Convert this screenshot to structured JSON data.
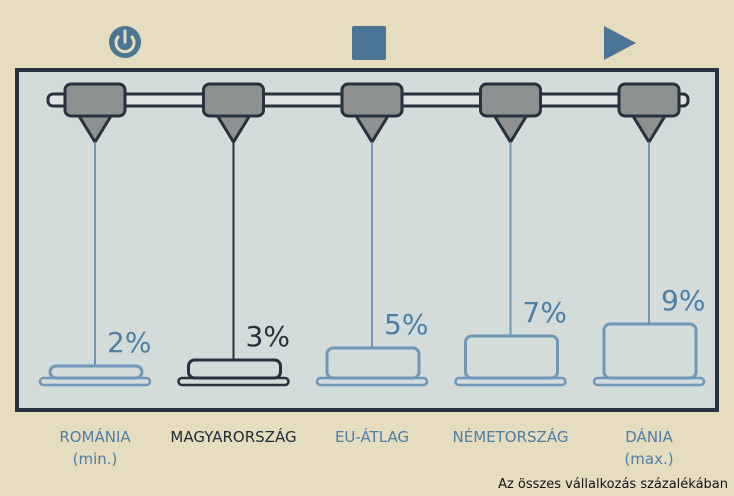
{
  "chart_data": {
    "type": "pictorial-bar",
    "categories": [
      "ROMÁNIA\n(min.)",
      "MAGYARORSZÁG",
      "EU-ÁTLAG",
      "NÉMETORSZÁG",
      "DÁNIA\n(max.)"
    ],
    "values": [
      2,
      3,
      5,
      7,
      9
    ],
    "value_labels": [
      "2%",
      "3%",
      "5%",
      "7%",
      "9%"
    ],
    "colors": [
      "#6f97b8",
      "#26323d",
      "#6f97b8",
      "#6f97b8",
      "#6f97b8"
    ],
    "label_colors": [
      "#4d7ea3",
      "#1e2a35",
      "#4d7ea3",
      "#4d7ea3",
      "#4d7ea3"
    ],
    "note": "Az összes vállalkozás százalékában"
  }
}
